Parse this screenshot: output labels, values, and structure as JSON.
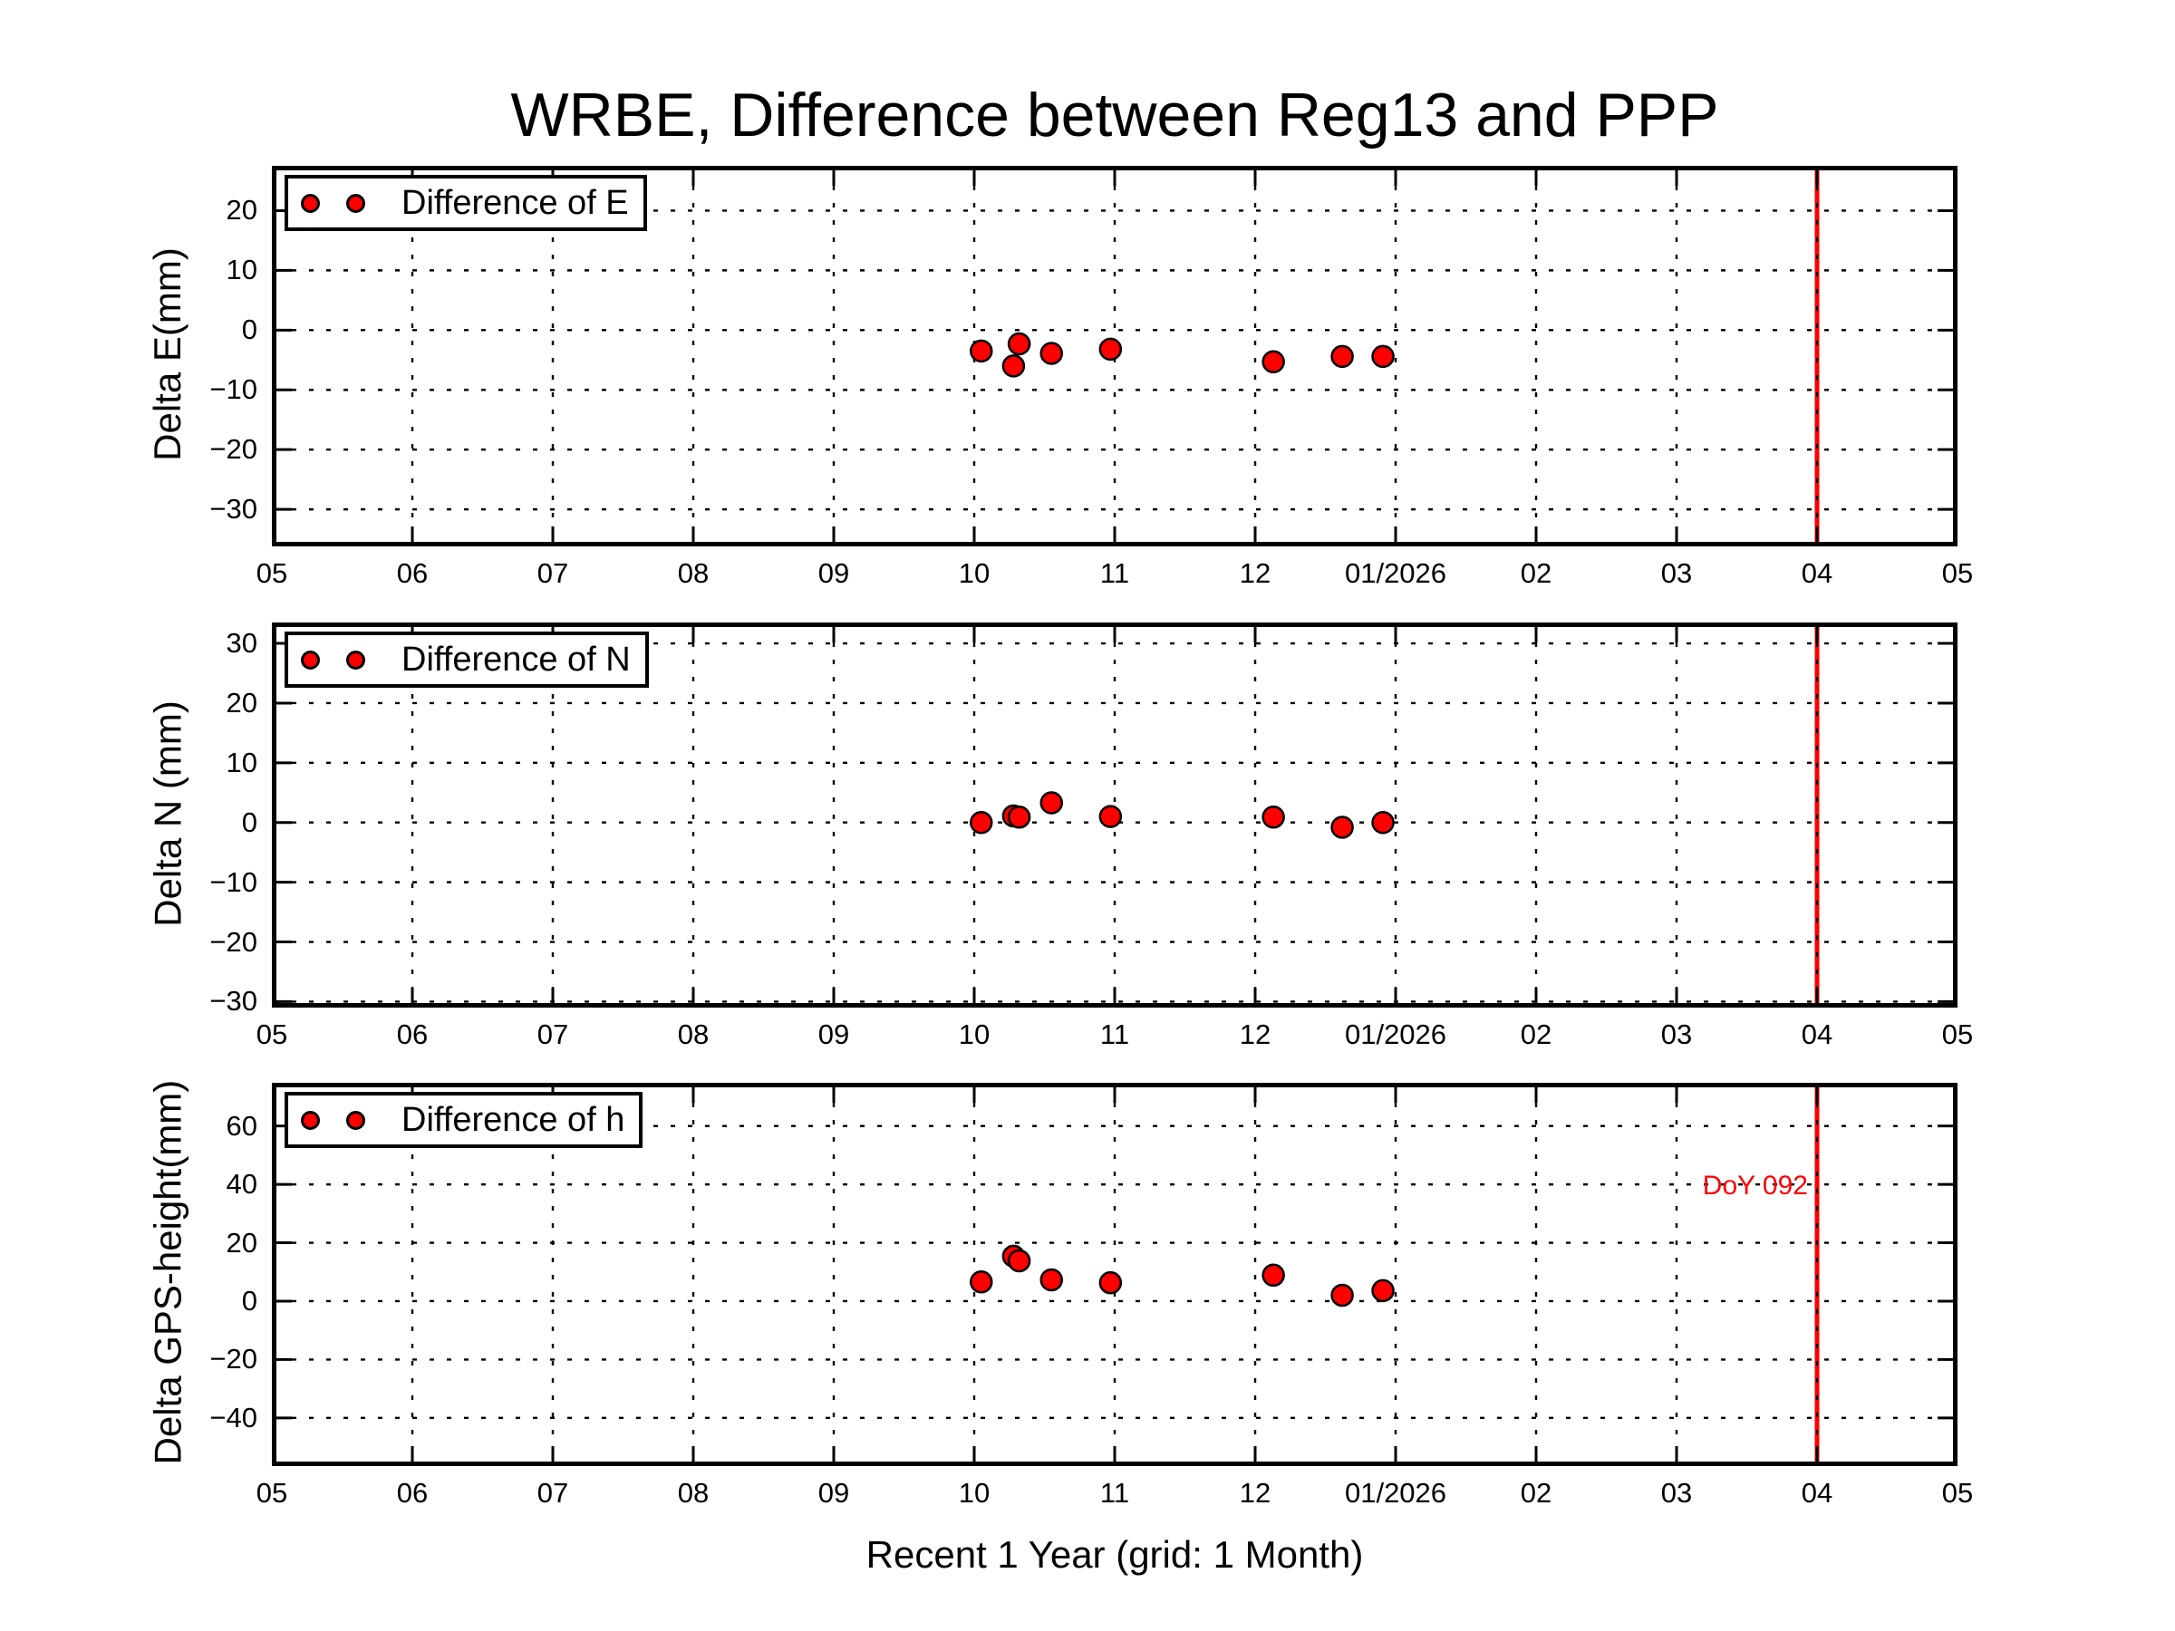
{
  "figure": {
    "title": "WRBE, Difference between Reg13 and PPP",
    "xlabel": "Recent 1 Year (grid: 1 Month)",
    "background": "#ffffff"
  },
  "chart_data": {
    "type": "scatter",
    "title": "WRBE, Difference between Reg13 and PPP",
    "xlabel": "Recent 1 Year (grid: 1 Month)",
    "x_unit": "month index from first tick (05 = 2025-05); 1 unit = 1 month",
    "xlim": [
      0,
      12
    ],
    "grid": "dotted, 1 month vertical spacing",
    "legend_position": "upper left",
    "xtick_labels": [
      "05",
      "06",
      "07",
      "08",
      "09",
      "10",
      "11",
      "12",
      "01/2026",
      "02",
      "03",
      "04",
      "05"
    ],
    "x": [
      5.05,
      5.28,
      5.32,
      5.55,
      5.97,
      7.13,
      7.62,
      7.91
    ],
    "marker": {
      "shape": "circle",
      "fill": "#ff0000",
      "edge": "#000000"
    },
    "vline": {
      "x": 11,
      "tick_label_at_line": "04",
      "color": "#ff0000"
    },
    "subplots": [
      {
        "ylabel": "Delta E(mm)",
        "legend": "Difference of E",
        "ylim": [
          -36.2,
          27.5
        ],
        "yticks": [
          20,
          10,
          0,
          -10,
          -20,
          -30
        ],
        "y": [
          -3.5,
          -6.0,
          -2.3,
          -3.9,
          -3.2,
          -5.3,
          -4.4,
          -4.4
        ],
        "annotation": null
      },
      {
        "ylabel": "Delta N (mm)",
        "legend": "Difference of N",
        "ylim": [
          -31.0,
          33.5
        ],
        "yticks": [
          30,
          20,
          10,
          0,
          -10,
          -20,
          -30
        ],
        "y": [
          0.0,
          1.1,
          0.9,
          3.3,
          1.0,
          0.9,
          -0.8,
          0.0
        ],
        "annotation": null
      },
      {
        "ylabel": "Delta GPS-height(mm)",
        "legend": "Difference of h",
        "ylim": [
          -56.5,
          74.8
        ],
        "yticks": [
          60,
          40,
          20,
          0,
          -20,
          -40
        ],
        "y": [
          6.6,
          15.4,
          13.8,
          7.3,
          6.3,
          8.9,
          2.0,
          3.6
        ],
        "annotation": {
          "text": "DoY 092",
          "x": 11,
          "y": 40,
          "color": "#ff0000",
          "align": "right"
        }
      }
    ]
  }
}
